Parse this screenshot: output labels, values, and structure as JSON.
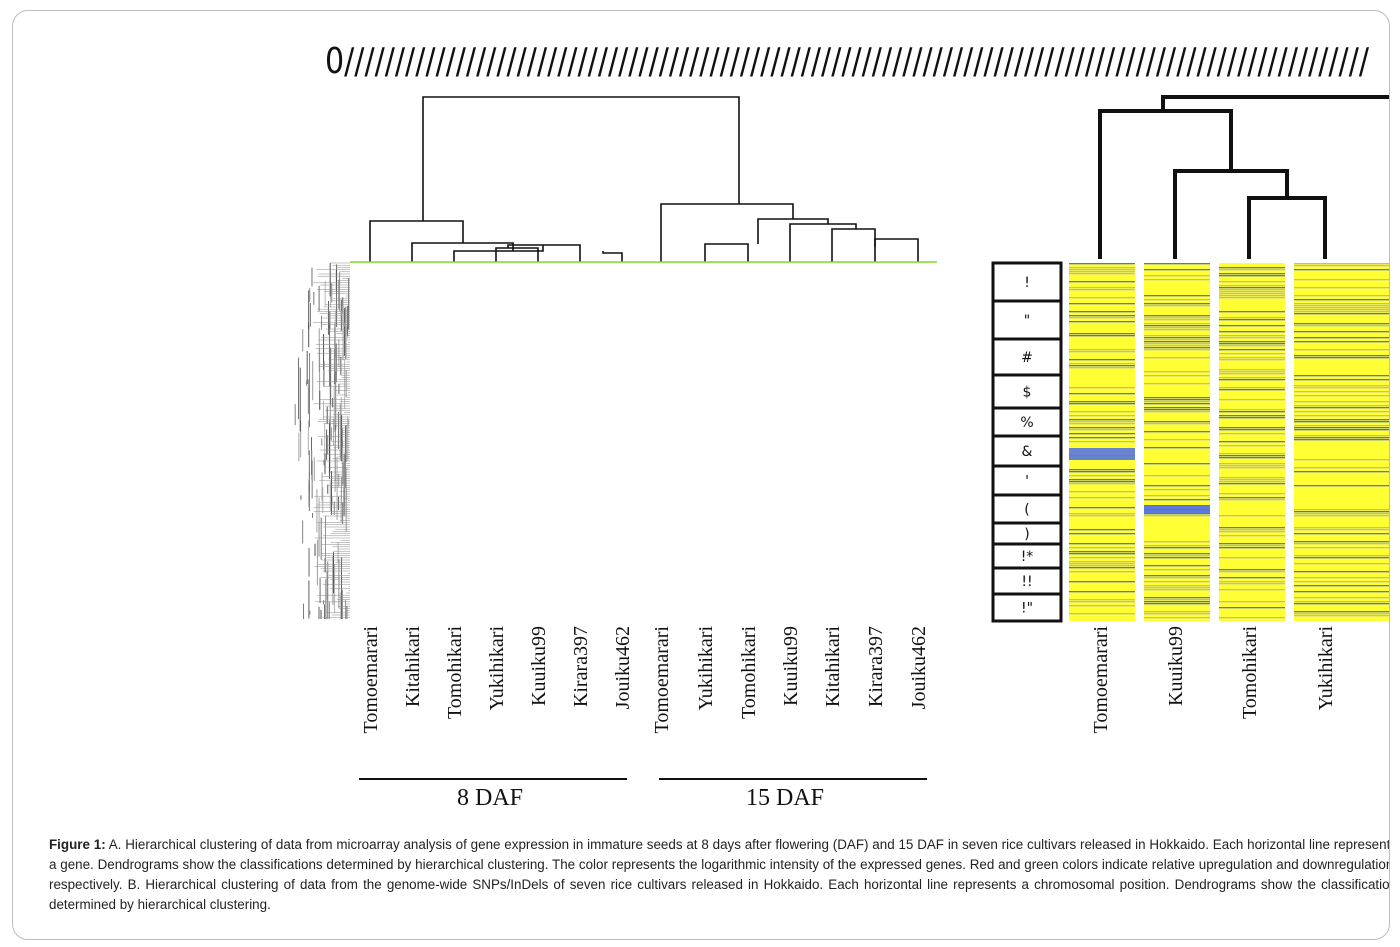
{
  "header_mark": "0/////////////////////////////////////////////////////////////////////////////////////////////////////",
  "panel_a": {
    "columns": [
      "Tomoemarari",
      "Kitahikari",
      "Tomohikari",
      "Yukihikari",
      "Kuuiku99",
      "Kirara397",
      "Jouiku462",
      "Tomoemarari",
      "Yukihikari",
      "Tomohikari",
      "Kuuiku99",
      "Kitahikari",
      "Kirara397",
      "Jouiku462"
    ],
    "group_labels": [
      "8 DAF",
      "15 DAF"
    ]
  },
  "panel_b": {
    "chromosome_labels": [
      "!",
      "\"",
      "#",
      "$",
      "%",
      "&",
      "'",
      "(",
      ")",
      "!*",
      "!!",
      "!\""
    ],
    "columns": [
      "Tomoemarari",
      "Kuuiku99",
      "Tomohikari",
      "Yukihikari"
    ]
  },
  "colors": {
    "accent_green": "#7ddc1f",
    "heat_yellow": "#ffff33",
    "heat_blue": "#4f6fe8",
    "heat_gray": "#b9b9b9"
  },
  "caption": {
    "lead": "Figure 1:",
    "text": "A. Hierarchical clustering of data from microarray analysis of gene expression in immature seeds at 8 days after flowering (DAF) and 15 DAF in seven rice cultivars released in Hokkaido. Each horizontal line represents a gene. Dendrograms show the classifications determined by hierarchical clustering. The color represents the logarithmic intensity of the expressed genes. Red and green colors indicate relative upregulation and downregulation, respectively. B. Hierarchical clustering of data from the genome-wide SNPs/InDels of seven rice cultivars released in Hokkaido. Each horizontal line represents a chromosomal position. Dendrograms show the classification determined by hierarchical clustering."
  }
}
